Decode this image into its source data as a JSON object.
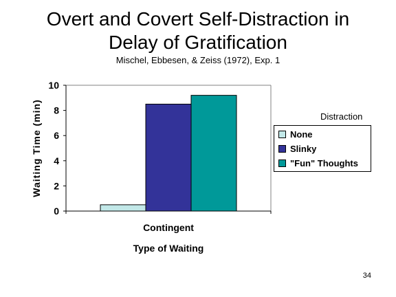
{
  "slide": {
    "title_line_1": "Overt and Covert Self-Distraction in",
    "title_line_2": "Delay of Gratification",
    "subtitle": "Mischel, Ebbesen, & Zeiss (1972), Exp. 1",
    "page_number": "34"
  },
  "chart_data": {
    "type": "bar",
    "categories": [
      "Contingent"
    ],
    "series": [
      {
        "name": "None",
        "values": [
          0.5
        ],
        "color": "#C2E8E8"
      },
      {
        "name": "Slinky",
        "values": [
          8.5
        ],
        "color": "#333399"
      },
      {
        "name": "\"Fun\" Thoughts",
        "values": [
          9.2
        ],
        "color": "#009999"
      }
    ],
    "xlabel": "Type of Waiting",
    "ylabel": "Waiting Time (min)",
    "ylim": [
      0,
      10
    ],
    "yticks": [
      0,
      2,
      4,
      6,
      8,
      10
    ],
    "grid": false,
    "legend_title": "Distraction",
    "legend_position": "right"
  }
}
